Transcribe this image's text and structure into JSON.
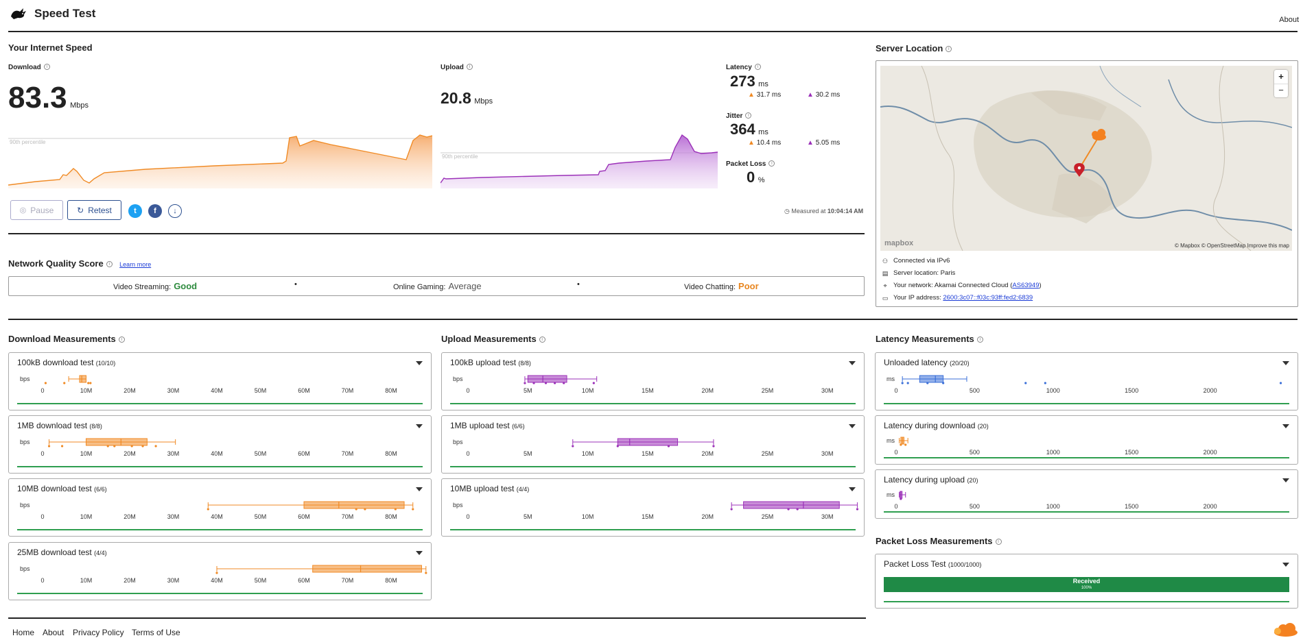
{
  "header": {
    "title": "Speed Test",
    "about": "About"
  },
  "speed": {
    "section_title": "Your Internet Speed",
    "download": {
      "label": "Download",
      "value": "83.3",
      "unit": "Mbps",
      "percentile_label": "90th percentile"
    },
    "upload": {
      "label": "Upload",
      "value": "20.8",
      "unit": "Mbps",
      "percentile_label": "90th percentile"
    },
    "latency": {
      "label": "Latency",
      "value": "273",
      "unit": "ms",
      "down": "31.7 ms",
      "up": "30.2 ms"
    },
    "jitter": {
      "label": "Jitter",
      "value": "364",
      "unit": "ms",
      "down": "10.4 ms",
      "up": "5.05 ms"
    },
    "packet_loss": {
      "label": "Packet Loss",
      "value": "0",
      "unit": "%"
    },
    "measured_at_prefix": "Measured at",
    "measured_at_time": "10:04:14 AM",
    "pause_label": "Pause",
    "retest_label": "Retest"
  },
  "quality": {
    "title": "Network Quality Score",
    "learn_more": "Learn more",
    "items": [
      {
        "label": "Video Streaming:",
        "value": "Good",
        "color": "#2e8b3e"
      },
      {
        "label": "Online Gaming:",
        "value": "Average",
        "color": "#555555"
      },
      {
        "label": "Video Chatting:",
        "value": "Poor",
        "color": "#e8851e"
      }
    ],
    "separator": "•"
  },
  "server": {
    "title": "Server Location",
    "map_attribution": "© Mapbox © OpenStreetMap Improve this map",
    "mapbox_logo": "mapbox",
    "zoom_in": "+",
    "zoom_out": "−",
    "lines": {
      "connected": "Connected via IPv6",
      "location": "Server location: Paris",
      "network_prefix": "Your network: Akamai Connected Cloud (",
      "network_asn": "AS63949",
      "network_suffix": ")",
      "ip_prefix": "Your IP address: ",
      "ip": "2600:3c07::f03c:93ff:fed2:6839"
    }
  },
  "download_measurements": {
    "title": "Download Measurements",
    "unit_label": "bps",
    "ticks": [
      "0",
      "10M",
      "20M",
      "30M",
      "40M",
      "50M",
      "60M",
      "70M",
      "80M"
    ],
    "tests": [
      {
        "name": "100kB download test",
        "count": "(10/10)"
      },
      {
        "name": "1MB download test",
        "count": "(8/8)"
      },
      {
        "name": "10MB download test",
        "count": "(6/6)"
      },
      {
        "name": "25MB download test",
        "count": "(4/4)"
      }
    ]
  },
  "upload_measurements": {
    "title": "Upload Measurements",
    "unit_label": "bps",
    "ticks": [
      "0",
      "5M",
      "10M",
      "15M",
      "20M",
      "25M",
      "30M"
    ],
    "tests": [
      {
        "name": "100kB upload test",
        "count": "(8/8)"
      },
      {
        "name": "1MB upload test",
        "count": "(6/6)"
      },
      {
        "name": "10MB upload test",
        "count": "(4/4)"
      }
    ]
  },
  "latency_measurements": {
    "title": "Latency Measurements",
    "unit_label": "ms",
    "ticks": [
      "0",
      "500",
      "1000",
      "1500",
      "2000"
    ],
    "tests": [
      {
        "name": "Unloaded latency",
        "count": "(20/20)"
      },
      {
        "name": "Latency during download",
        "count": "(20)"
      },
      {
        "name": "Latency during upload",
        "count": "(20)"
      }
    ]
  },
  "packet_loss_measurements": {
    "title": "Packet Loss Measurements",
    "test_name": "Packet Loss Test",
    "test_count": "(1000/1000)",
    "received_label": "Received",
    "received_pct": "100%"
  },
  "footer": {
    "links": [
      "Home",
      "About",
      "Privacy Policy",
      "Terms of Use"
    ]
  },
  "colors": {
    "download": "#f08a24",
    "upload": "#9b30b8",
    "latency": "#3a6fd8",
    "good": "#2e8b3e",
    "poor": "#e8851e",
    "link": "#1a3bd6"
  }
}
